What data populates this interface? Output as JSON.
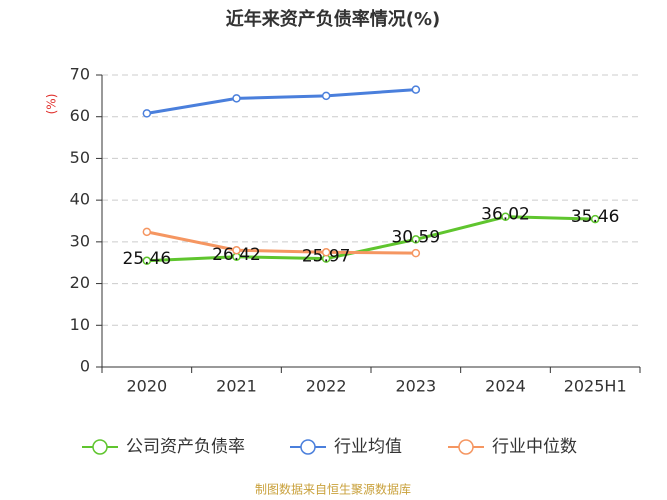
{
  "chart_data": {
    "type": "line",
    "title": "近年来资产负债率情况(%)",
    "y_label": "(%)",
    "categories": [
      "2020",
      "2021",
      "2022",
      "2023",
      "2024",
      "2025H1"
    ],
    "series": [
      {
        "name": "公司资产负债率",
        "color": "#5fc52e",
        "values": [
          25.46,
          26.42,
          25.97,
          30.59,
          36.02,
          35.46
        ],
        "show_labels": true
      },
      {
        "name": "行业均值",
        "color": "#4a7fdc",
        "values": [
          60.8,
          64.4,
          65.0,
          66.5,
          null,
          null
        ]
      },
      {
        "name": "行业中位数",
        "color": "#f59661",
        "values": [
          32.4,
          28.0,
          27.5,
          27.3,
          null,
          null
        ]
      }
    ],
    "ylim": [
      0,
      70
    ],
    "yticks": [
      0,
      10,
      20,
      30,
      40,
      50,
      60,
      70
    ],
    "grid": true,
    "source": "制图数据来自恒生聚源数据库"
  }
}
